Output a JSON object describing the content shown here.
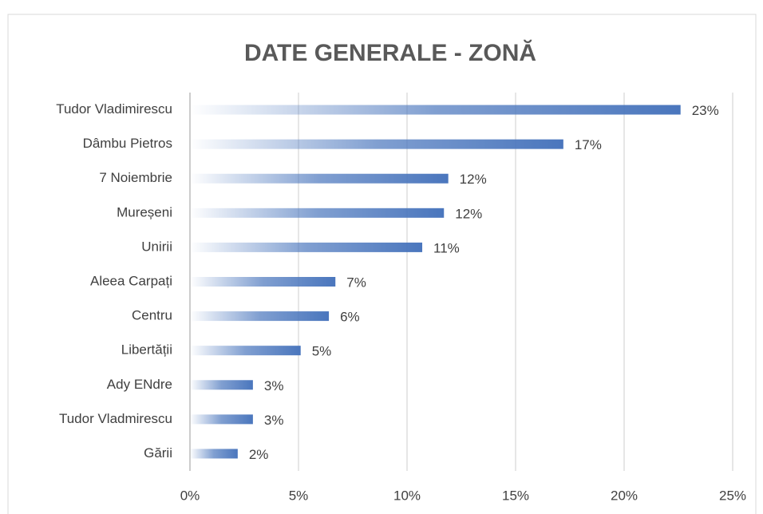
{
  "chart_data": {
    "type": "barh",
    "title": "DATE GENERALE - ZONĂ",
    "categories": [
      "Tudor Vladimirescu",
      "Dâmbu Pietros",
      "7 Noiembrie",
      "Mureșeni",
      "Unirii",
      "Aleea Carpați",
      "Centru",
      "Libertății",
      "Ady ENdre",
      "Tudor Vladmirescu",
      "Gării"
    ],
    "values": [
      22.6,
      17.2,
      11.9,
      11.7,
      10.7,
      6.7,
      6.4,
      5.1,
      2.9,
      2.9,
      2.2
    ],
    "value_labels": [
      "23%",
      "17%",
      "12%",
      "12%",
      "11%",
      "7%",
      "6%",
      "5%",
      "3%",
      "3%",
      "2%"
    ],
    "color": "#4a76bd",
    "xlim": [
      0,
      25
    ],
    "xticks": [
      {
        "value": 0,
        "label": "0%"
      },
      {
        "value": 5,
        "label": "5%"
      },
      {
        "value": 10,
        "label": "10%"
      },
      {
        "value": 15,
        "label": "15%"
      },
      {
        "value": 20,
        "label": "20%"
      },
      {
        "value": 25,
        "label": "25%"
      }
    ],
    "grid": true
  }
}
